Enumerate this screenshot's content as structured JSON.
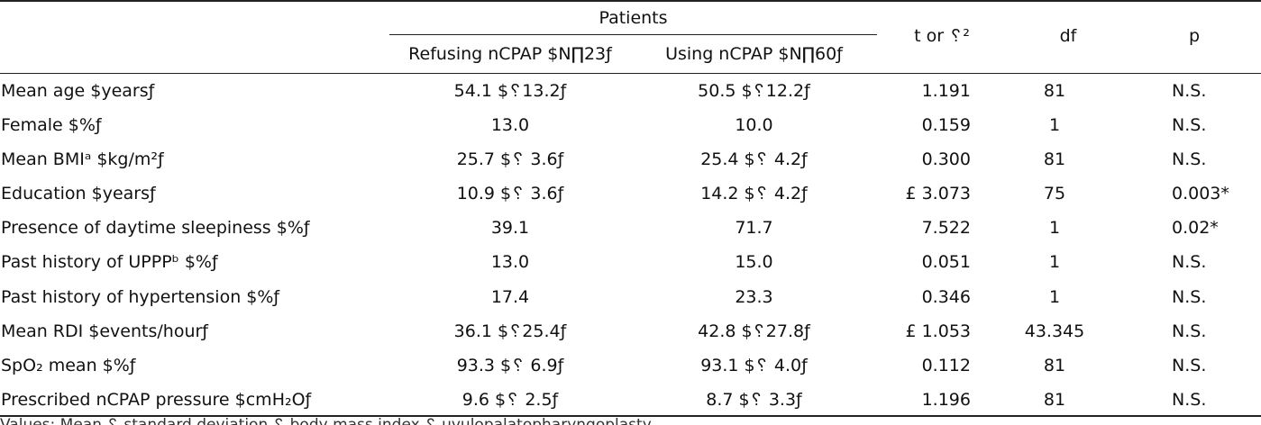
{
  "header": {
    "patients": "Patients",
    "refusing": "Refusing nCPAP $N∏23ƒ",
    "using": "Using nCPAP $N∏60ƒ",
    "t_or": "t or ␦²",
    "df": "df",
    "p": "p"
  },
  "rows": [
    {
      "label": "Mean age $yearsƒ",
      "refusing": "54.1 $␦13.2ƒ",
      "using": "50.5 $␦12.2ƒ",
      "t": "1.191",
      "df": "81",
      "p": "N.S."
    },
    {
      "label": "Female $%ƒ",
      "refusing": "13.0",
      "using": "10.0",
      "t": "0.159",
      "df": "1",
      "p": "N.S."
    },
    {
      "label": "Mean BMIᵃ $kg/m²ƒ",
      "refusing": "25.7 $␦ 3.6ƒ",
      "using": "25.4 $␦ 4.2ƒ",
      "t": "0.300",
      "df": "81",
      "p": "N.S."
    },
    {
      "label": "Education $yearsƒ",
      "refusing": "10.9 $␦ 3.6ƒ",
      "using": "14.2 $␦ 4.2ƒ",
      "t": "£ 3.073",
      "df": "75",
      "p": "0.003*"
    },
    {
      "label": "Presence of daytime sleepiness $%ƒ",
      "refusing": "39.1",
      "using": "71.7",
      "t": "7.522",
      "df": "1",
      "p": "0.02*"
    },
    {
      "label": "Past history of UPPPᵇ $%ƒ",
      "refusing": "13.0",
      "using": "15.0",
      "t": "0.051",
      "df": "1",
      "p": "N.S."
    },
    {
      "label": "Past history of hypertension $%ƒ",
      "refusing": "17.4",
      "using": "23.3",
      "t": "0.346",
      "df": "1",
      "p": "N.S."
    },
    {
      "label": "Mean RDI $events/hourƒ",
      "refusing": "36.1 $␦25.4ƒ",
      "using": "42.8 $␦27.8ƒ",
      "t": "£ 1.053",
      "df": "43.345",
      "p": "N.S."
    },
    {
      "label": "SpO₂ mean $%ƒ",
      "refusing": "93.3 $␦ 6.9ƒ",
      "using": "93.1 $␦ 4.0ƒ",
      "t": "0.112",
      "df": "81",
      "p": "N.S."
    },
    {
      "label": "Prescribed nCPAP pressure $cmH₂Oƒ",
      "refusing": "9.6 $␦ 2.5ƒ",
      "using": "8.7 $␦ 3.3ƒ",
      "t": "1.196",
      "df": "81",
      "p": "N.S."
    }
  ],
  "footnote": "Values: Mean ␦ standard deviation ␦ body mass index ␦ uvulopalatopharyngoplasty"
}
